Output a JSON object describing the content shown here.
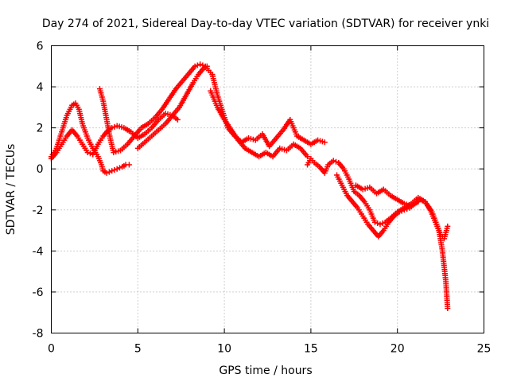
{
  "chart_data": {
    "type": "scatter",
    "title": "Day 274 of 2021, Sidereal Day-to-day VTEC variation (SDTVAR) for receiver ynki",
    "xlabel": "GPS time / hours",
    "ylabel": "SDTVAR / TECUs",
    "xlim": [
      0,
      25
    ],
    "ylim": [
      -8,
      6
    ],
    "xticks": [
      "0",
      "5",
      "10",
      "15",
      "20",
      "25"
    ],
    "yticks": [
      "-8",
      "-6",
      "-4",
      "-2",
      "0",
      "2",
      "4",
      "6"
    ],
    "grid": true,
    "legend": "none",
    "marker": "plus",
    "color": "#ff0000",
    "series": [
      {
        "name": "track-1",
        "x": [
          0.0,
          0.3,
          0.6,
          0.9,
          1.2,
          1.4,
          1.6,
          1.8,
          2.1,
          2.4,
          2.7,
          2.9,
          3.0,
          3.2,
          3.5,
          3.8,
          4.1,
          4.3,
          4.5
        ],
        "y": [
          0.6,
          1.0,
          1.8,
          2.6,
          3.1,
          3.2,
          2.9,
          2.2,
          1.5,
          1.0,
          0.6,
          0.2,
          -0.1,
          -0.2,
          -0.1,
          0.0,
          0.1,
          0.2,
          0.2
        ]
      },
      {
        "name": "track-2",
        "x": [
          0.0,
          0.3,
          0.6,
          0.9,
          1.2,
          1.5,
          1.8,
          2.1,
          2.4,
          2.7,
          3.0,
          3.3,
          3.5,
          3.8,
          4.2,
          4.6,
          5.0,
          5.4,
          5.8,
          6.2,
          6.6,
          7.0,
          7.3
        ],
        "y": [
          0.5,
          0.8,
          1.2,
          1.6,
          1.9,
          1.6,
          1.2,
          0.8,
          0.7,
          1.2,
          1.6,
          1.9,
          2.0,
          2.1,
          2.0,
          1.8,
          1.5,
          1.7,
          2.0,
          2.4,
          2.7,
          2.6,
          2.4
        ]
      },
      {
        "name": "track-3",
        "x": [
          2.8,
          3.0,
          3.2,
          3.4,
          3.6,
          4.0,
          4.4,
          4.8,
          5.2,
          5.6,
          6.0,
          6.4,
          6.8,
          7.2,
          7.6,
          8.0,
          8.3,
          8.6,
          8.9,
          9.1,
          9.3
        ],
        "y": [
          3.9,
          3.3,
          2.4,
          1.5,
          0.8,
          0.9,
          1.2,
          1.6,
          2.0,
          2.2,
          2.5,
          2.9,
          3.4,
          3.9,
          4.3,
          4.7,
          5.0,
          5.1,
          5.0,
          4.8,
          4.6
        ]
      },
      {
        "name": "track-4",
        "x": [
          5.0,
          5.4,
          5.8,
          6.2,
          6.6,
          7.0,
          7.4,
          7.8,
          8.2,
          8.5,
          8.8,
          9.0
        ],
        "y": [
          1.0,
          1.3,
          1.6,
          1.9,
          2.2,
          2.6,
          3.0,
          3.6,
          4.2,
          4.6,
          4.9,
          5.0
        ]
      },
      {
        "name": "track-5",
        "x": [
          9.3,
          9.6,
          9.9,
          10.2,
          10.6,
          11.0,
          11.4,
          11.8,
          12.2,
          12.6,
          13.0,
          13.4,
          13.8,
          14.2,
          14.6,
          15.0,
          15.4,
          15.8
        ],
        "y": [
          4.6,
          3.6,
          2.8,
          2.0,
          1.6,
          1.3,
          1.5,
          1.4,
          1.7,
          1.1,
          1.5,
          1.9,
          2.4,
          1.6,
          1.4,
          1.2,
          1.4,
          1.3
        ]
      },
      {
        "name": "track-6",
        "x": [
          9.2,
          9.6,
          10.0,
          10.4,
          10.8,
          11.2,
          11.6,
          12.0,
          12.4,
          12.8,
          13.2,
          13.6,
          14.0,
          14.4,
          14.8
        ],
        "y": [
          3.8,
          3.0,
          2.4,
          1.9,
          1.4,
          1.0,
          0.8,
          0.6,
          0.8,
          0.6,
          1.0,
          0.9,
          1.2,
          1.0,
          0.6
        ]
      },
      {
        "name": "track-7",
        "x": [
          14.8,
          15.0,
          15.2,
          15.5,
          15.8,
          16.0,
          16.3,
          16.6,
          16.9,
          17.2,
          17.5,
          17.8,
          18.1,
          18.4,
          18.7,
          19.0,
          19.3,
          19.6,
          20.0,
          20.4,
          20.8,
          21.2,
          21.6,
          22.0,
          22.4,
          22.6,
          22.8,
          22.9
        ],
        "y": [
          0.2,
          0.5,
          0.3,
          0.1,
          -0.2,
          0.2,
          0.4,
          0.3,
          0.0,
          -0.5,
          -1.1,
          -1.3,
          -1.6,
          -2.0,
          -2.6,
          -2.7,
          -2.6,
          -2.4,
          -2.1,
          -1.9,
          -1.7,
          -1.4,
          -1.6,
          -2.1,
          -3.0,
          -4.0,
          -5.5,
          -6.8
        ]
      },
      {
        "name": "track-8",
        "x": [
          16.5,
          16.8,
          17.1,
          17.4,
          17.7,
          18.0,
          18.3,
          18.6,
          18.9,
          19.2,
          19.5,
          19.8,
          20.1,
          20.4,
          20.7,
          21.0,
          21.3,
          21.6,
          21.9,
          22.2,
          22.5,
          22.7,
          22.9
        ],
        "y": [
          -0.3,
          -0.8,
          -1.3,
          -1.6,
          -1.9,
          -2.3,
          -2.7,
          -3.0,
          -3.3,
          -3.0,
          -2.6,
          -2.3,
          -2.1,
          -2.0,
          -1.9,
          -1.7,
          -1.5,
          -1.6,
          -2.0,
          -2.6,
          -3.2,
          -3.4,
          -2.8
        ]
      },
      {
        "name": "track-9",
        "x": [
          17.6,
          18.0,
          18.4,
          18.8,
          19.2,
          19.6,
          20.0,
          20.4,
          20.8,
          21.2
        ],
        "y": [
          -0.8,
          -1.0,
          -0.9,
          -1.2,
          -1.0,
          -1.3,
          -1.5,
          -1.7,
          -1.8,
          -1.6
        ]
      }
    ]
  }
}
